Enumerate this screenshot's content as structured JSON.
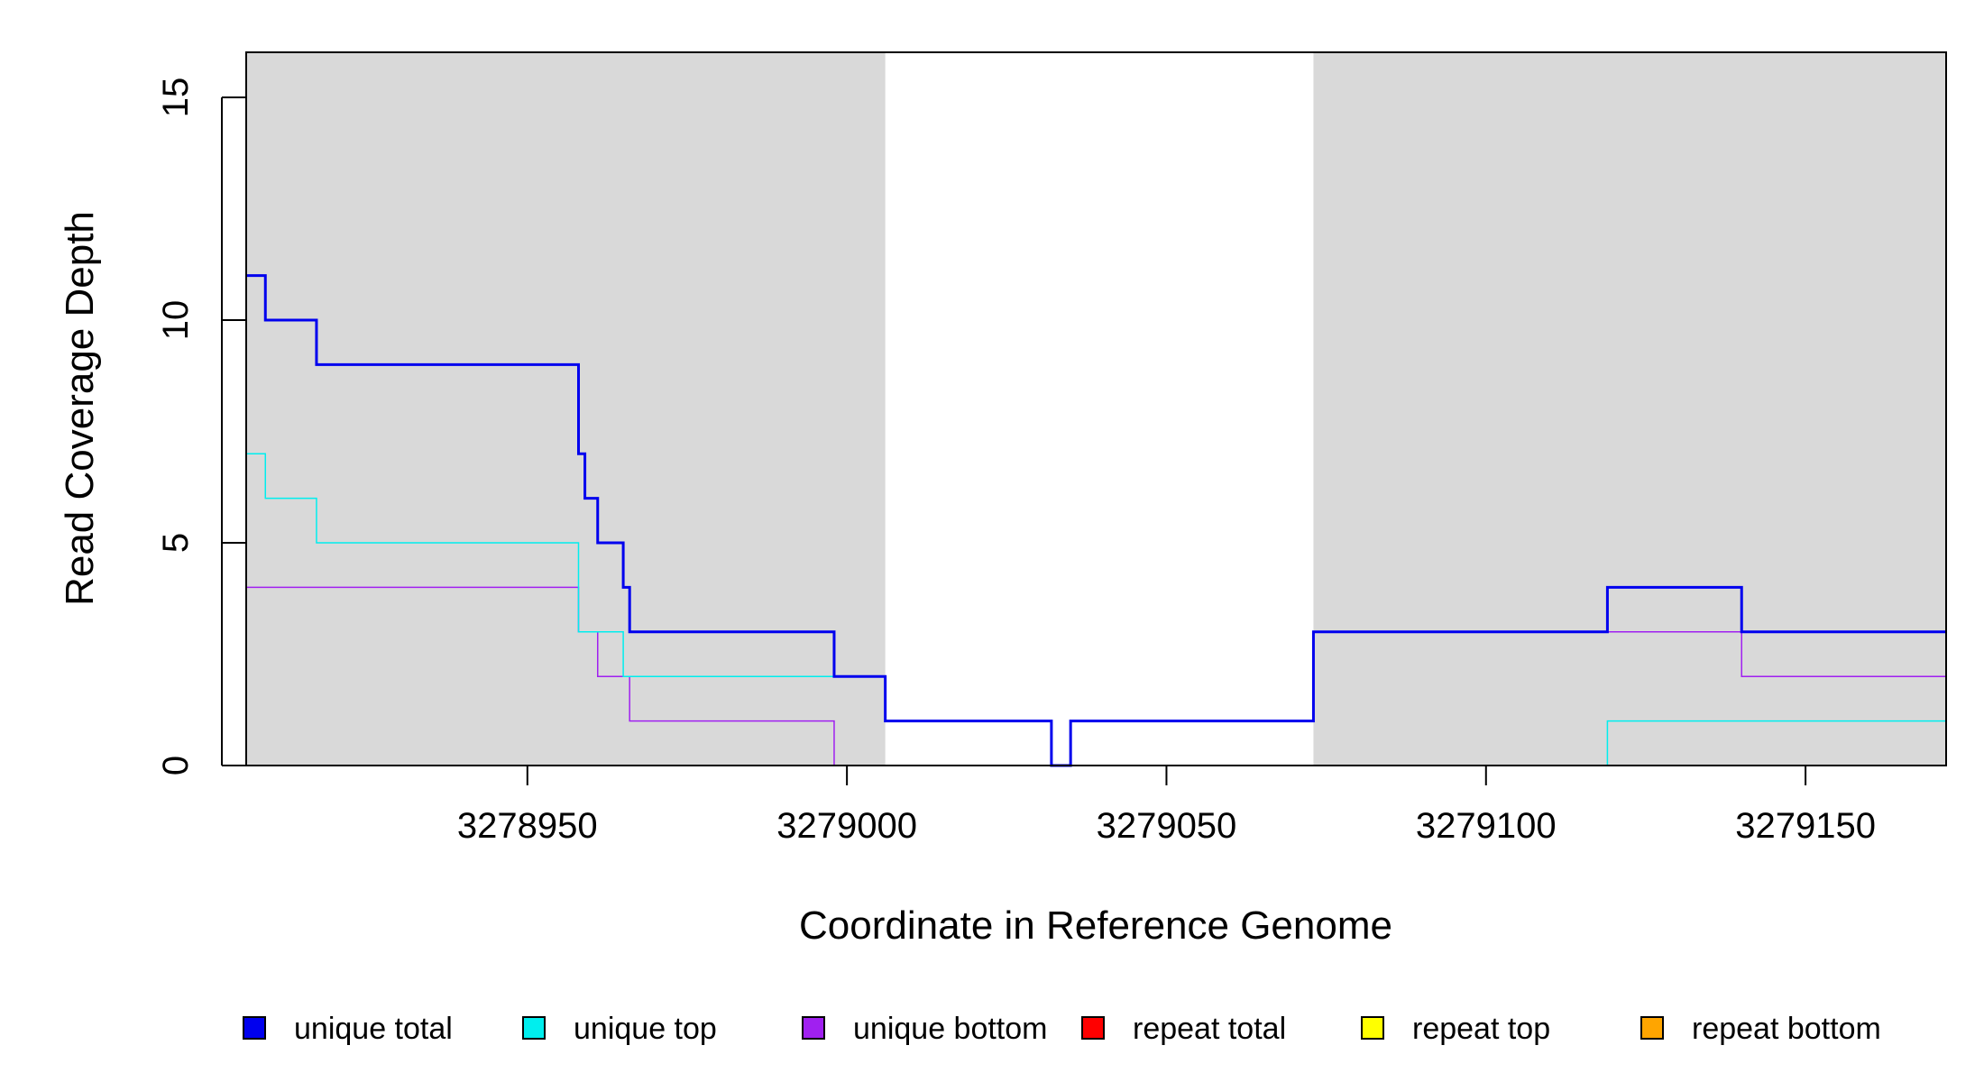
{
  "chart_data": {
    "type": "line",
    "xlabel": "Coordinate in Reference Genome",
    "ylabel": "Read Coverage Depth",
    "xlim": [
      3278906,
      3279172
    ],
    "ylim": [
      0,
      16
    ],
    "xticks": [
      3278950,
      3279000,
      3279050,
      3279100,
      3279150
    ],
    "xtick_labels": [
      "3278950",
      "3279000",
      "3279050",
      "3279100",
      "3279150"
    ],
    "yticks": [
      0,
      5,
      10,
      15
    ],
    "ytick_labels": [
      "0",
      "5",
      "10",
      "15"
    ],
    "grid": false,
    "shaded_regions": [
      {
        "x0": 3278906,
        "x1": 3279006,
        "color": "#d9d9d9"
      },
      {
        "x0": 3279073,
        "x1": 3279172,
        "color": "#d9d9d9"
      }
    ],
    "series": [
      {
        "name": "unique total",
        "color": "#0000ee",
        "x": [
          3278906,
          3278909,
          3278917,
          3278958,
          3278959,
          3278961,
          3278965,
          3278966,
          3278998,
          3279006,
          3279032,
          3279035,
          3279073,
          3279119,
          3279140,
          3279172
        ],
        "y": [
          11,
          10,
          9,
          7,
          6,
          5,
          4,
          3,
          2,
          1,
          0,
          1,
          3,
          4,
          3,
          3
        ]
      },
      {
        "name": "unique top",
        "color": "#00eeee",
        "x": [
          3278906,
          3278909,
          3278917,
          3278958,
          3278959,
          3278965,
          3278998,
          3279006,
          3279032,
          3279035,
          3279073,
          3279119,
          3279140,
          3279172
        ],
        "y": [
          7,
          6,
          5,
          3,
          3,
          2,
          2,
          1,
          0,
          0,
          0,
          1,
          1,
          1
        ]
      },
      {
        "name": "unique bottom",
        "color": "#a020f0",
        "x": [
          3278906,
          3278958,
          3278961,
          3278966,
          3278998,
          3279006,
          3279032,
          3279035,
          3279073,
          3279119,
          3279140,
          3279172
        ],
        "y": [
          4,
          3,
          2,
          1,
          0,
          0,
          0,
          1,
          3,
          3,
          2,
          2
        ]
      },
      {
        "name": "repeat total",
        "color": "#ff0000",
        "x": [
          3278906,
          3279172
        ],
        "y": [
          0,
          0
        ]
      },
      {
        "name": "repeat top",
        "color": "#ffff00",
        "x": [
          3278906,
          3279172
        ],
        "y": [
          0,
          0
        ]
      },
      {
        "name": "repeat bottom",
        "color": "#ffa500",
        "x": [
          3278906,
          3279172
        ],
        "y": [
          0,
          0
        ]
      }
    ],
    "legend": {
      "placement": "bottom",
      "items": [
        {
          "label": "unique total",
          "color": "#0000ee"
        },
        {
          "label": "unique top",
          "color": "#00eeee"
        },
        {
          "label": "unique bottom",
          "color": "#a020f0"
        },
        {
          "label": "repeat total",
          "color": "#ff0000"
        },
        {
          "label": "repeat top",
          "color": "#ffff00"
        },
        {
          "label": "repeat bottom",
          "color": "#ffa500"
        }
      ]
    }
  }
}
